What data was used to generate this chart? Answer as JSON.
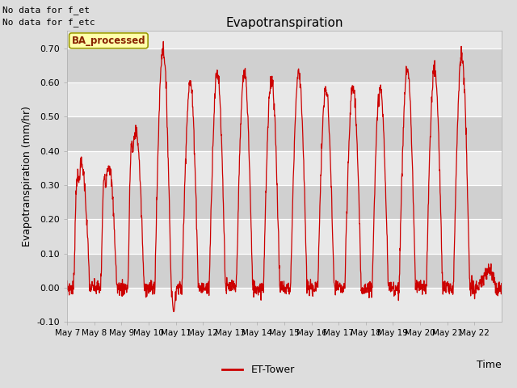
{
  "title": "Evapotranspiration",
  "ylabel": "Evapotranspiration (mm/hr)",
  "xlabel": "Time",
  "annotation1": "No data for f_et",
  "annotation2": "No data for f_etc",
  "legend_label": "ET-Tower",
  "legend_box_label": "BA_processed",
  "ylim": [
    -0.1,
    0.75
  ],
  "yticks": [
    -0.1,
    0.0,
    0.1,
    0.2,
    0.3,
    0.4,
    0.5,
    0.6,
    0.7
  ],
  "line_color": "#cc0000",
  "bg_color": "#dddddd",
  "plot_bg_color": "#e8e8e8",
  "band_color_dark": "#d0d0d0",
  "band_color_light": "#e8e8e8",
  "legend_box_color": "#ffffaa",
  "legend_box_edge": "#999900",
  "xtick_labels": [
    "May 7",
    "May 8",
    "May 9",
    "May 10",
    "May 11",
    "May 12",
    "May 13",
    "May 14",
    "May 15",
    "May 16",
    "May 17",
    "May 18",
    "May 19",
    "May 20",
    "May 21",
    "May 22"
  ],
  "daily_peaks": [
    0.36,
    0.36,
    0.46,
    0.7,
    0.6,
    0.63,
    0.63,
    0.61,
    0.63,
    0.58,
    0.59,
    0.58,
    0.64,
    0.64,
    0.68,
    0.05
  ]
}
